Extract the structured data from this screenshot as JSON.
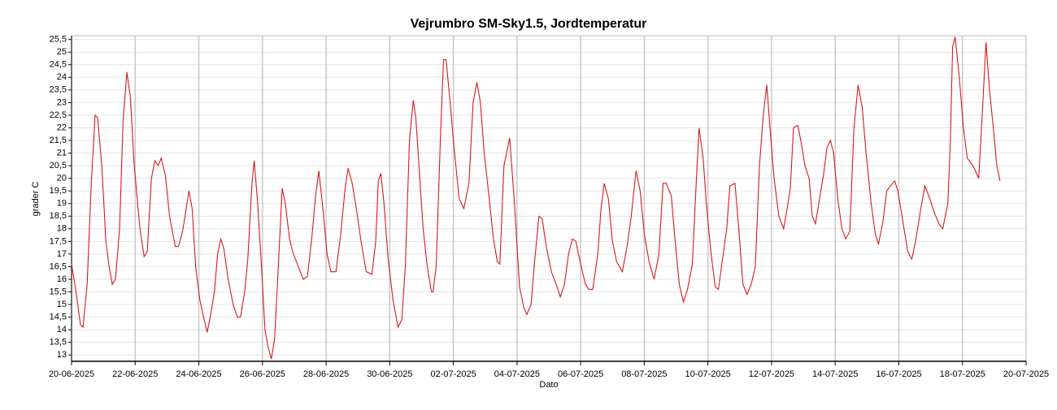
{
  "chart_data": {
    "type": "line",
    "title": "Vejrumbro SM-Sky1.5, Jordtemperatur",
    "xlabel": "Dato",
    "ylabel": "grader C",
    "color": "#d7191c",
    "grid": true,
    "xlim": [
      0,
      30
    ],
    "ylim": [
      12.75,
      25.65
    ],
    "xticks": [
      {
        "value": 0,
        "label": "20-06-2025"
      },
      {
        "value": 2,
        "label": "22-06-2025"
      },
      {
        "value": 4,
        "label": "24-06-2025"
      },
      {
        "value": 6,
        "label": "26-06-2025"
      },
      {
        "value": 8,
        "label": "28-06-2025"
      },
      {
        "value": 10,
        "label": "30-06-2025"
      },
      {
        "value": 12,
        "label": "02-07-2025"
      },
      {
        "value": 14,
        "label": "04-07-2025"
      },
      {
        "value": 16,
        "label": "06-07-2025"
      },
      {
        "value": 18,
        "label": "08-07-2025"
      },
      {
        "value": 20,
        "label": "10-07-2025"
      },
      {
        "value": 22,
        "label": "12-07-2025"
      },
      {
        "value": 24,
        "label": "14-07-2025"
      },
      {
        "value": 26,
        "label": "16-07-2025"
      },
      {
        "value": 28,
        "label": "18-07-2025"
      },
      {
        "value": 30,
        "label": "20-07-2025"
      }
    ],
    "yticks": [
      13,
      {
        "value": 13.5,
        "label": "13,5"
      },
      14,
      {
        "value": 14.5,
        "label": "14,5"
      },
      15,
      {
        "value": 15.5,
        "label": "15,5"
      },
      16,
      {
        "value": 16.5,
        "label": "16,5"
      },
      17,
      {
        "value": 17.5,
        "label": "17,5"
      },
      18,
      {
        "value": 18.5,
        "label": "18,5"
      },
      19,
      {
        "value": 19.5,
        "label": "19,5"
      },
      20,
      {
        "value": 20.5,
        "label": "20,5"
      },
      21,
      {
        "value": 21.5,
        "label": "21,5"
      },
      22,
      {
        "value": 22.5,
        "label": "22,5"
      },
      23,
      {
        "value": 23.5,
        "label": "23,5"
      },
      24,
      {
        "value": 24.5,
        "label": "24,5"
      },
      25,
      {
        "value": 25.5,
        "label": "25,5"
      }
    ],
    "x": [
      0,
      0.13,
      0.28,
      0.36,
      0.49,
      0.62,
      0.74,
      0.82,
      0.95,
      1.08,
      1.18,
      1.28,
      1.38,
      1.51,
      1.62,
      1.74,
      1.85,
      1.97,
      2.15,
      2.28,
      2.38,
      2.51,
      2.62,
      2.72,
      2.82,
      2.95,
      3.08,
      3.26,
      3.36,
      3.49,
      3.59,
      3.69,
      3.79,
      3.9,
      4.03,
      4.15,
      4.26,
      4.36,
      4.49,
      4.59,
      4.69,
      4.79,
      4.92,
      5.08,
      5.21,
      5.31,
      5.44,
      5.54,
      5.67,
      5.74,
      5.85,
      5.97,
      6.08,
      6.18,
      6.28,
      6.38,
      6.49,
      6.62,
      6.72,
      6.85,
      6.97,
      7.13,
      7.28,
      7.41,
      7.54,
      7.67,
      7.77,
      7.9,
      8.03,
      8.15,
      8.31,
      8.46,
      8.59,
      8.69,
      8.82,
      8.95,
      9.1,
      9.26,
      9.44,
      9.56,
      9.64,
      9.72,
      9.82,
      9.95,
      10.1,
      10.26,
      10.38,
      10.49,
      10.62,
      10.74,
      10.82,
      10.92,
      11.05,
      11.18,
      11.31,
      11.36,
      11.46,
      11.59,
      11.69,
      11.77,
      11.9,
      12,
      12.18,
      12.33,
      12.49,
      12.62,
      12.74,
      12.85,
      12.97,
      13.1,
      13.26,
      13.38,
      13.46,
      13.59,
      13.77,
      13.92,
      14.08,
      14.21,
      14.31,
      14.44,
      14.56,
      14.69,
      14.79,
      14.92,
      15.08,
      15.23,
      15.36,
      15.49,
      15.62,
      15.74,
      15.85,
      16,
      16.15,
      16.26,
      16.38,
      16.54,
      16.64,
      16.74,
      16.87,
      17,
      17.13,
      17.31,
      17.46,
      17.59,
      17.74,
      17.87,
      18,
      18.15,
      18.31,
      18.46,
      18.59,
      18.69,
      18.85,
      18.97,
      19.1,
      19.23,
      19.36,
      19.51,
      19.62,
      19.72,
      19.85,
      19.95,
      20.1,
      20.23,
      20.33,
      20.46,
      20.59,
      20.69,
      20.85,
      20.97,
      21.1,
      21.23,
      21.36,
      21.49,
      21.62,
      21.74,
      21.85,
      21.95,
      22.08,
      22.23,
      22.38,
      22.49,
      22.59,
      22.69,
      22.82,
      22.92,
      23.05,
      23.18,
      23.28,
      23.38,
      23.51,
      23.64,
      23.74,
      23.85,
      23.95,
      24.08,
      24.21,
      24.33,
      24.46,
      24.59,
      24.72,
      24.85,
      24.97,
      25.13,
      25.26,
      25.36,
      25.49,
      25.62,
      25.74,
      25.87,
      25.97,
      26.1,
      26.28,
      26.41,
      26.54,
      26.69,
      26.82,
      26.97,
      27.13,
      27.26,
      27.38,
      27.54,
      27.62,
      27.69,
      27.77,
      27.9,
      28.03,
      28.15,
      28.33,
      28.51,
      28.62,
      28.74,
      28.85,
      28.97,
      29.08,
      29.18
    ],
    "values": [
      16.6,
      15.6,
      14.2,
      14.1,
      15.8,
      19.8,
      22.5,
      22.4,
      20.5,
      17.5,
      16.5,
      15.8,
      16,
      18,
      22.3,
      24.2,
      23.2,
      20.5,
      18,
      16.9,
      17.1,
      20,
      20.7,
      20.5,
      20.8,
      20.1,
      18.5,
      17.3,
      17.3,
      17.9,
      18.7,
      19.5,
      18.8,
      16.5,
      15.2,
      14.5,
      13.9,
      14.5,
      15.5,
      17,
      17.6,
      17.2,
      16,
      15,
      14.5,
      14.5,
      15.5,
      16.8,
      19.8,
      20.7,
      19,
      16.5,
      14,
      13.3,
      12.85,
      13.6,
      16.3,
      19.6,
      19,
      17.6,
      17,
      16.5,
      16,
      16.1,
      17.5,
      19.3,
      20.3,
      18.8,
      17,
      16.3,
      16.3,
      17.8,
      19.5,
      20.4,
      19.8,
      18.8,
      17.5,
      16.3,
      16.2,
      17.5,
      19.9,
      20.2,
      19,
      16.8,
      15.2,
      14.1,
      14.4,
      16.5,
      21.5,
      23.1,
      22.4,
      20.5,
      18,
      16.5,
      15.5,
      15.5,
      16.5,
      21.5,
      24.7,
      24.7,
      23,
      21.5,
      19.2,
      18.8,
      19.8,
      23,
      23.8,
      23,
      21,
      19.5,
      17.6,
      16.7,
      16.6,
      20.5,
      21.6,
      19,
      15.7,
      14.9,
      14.6,
      15,
      16.8,
      18.5,
      18.4,
      17.3,
      16.3,
      15.8,
      15.3,
      15.8,
      17,
      17.6,
      17.5,
      16.6,
      15.8,
      15.6,
      15.6,
      17,
      18.8,
      19.8,
      19.2,
      17.5,
      16.7,
      16.3,
      17.3,
      18.5,
      20.3,
      19.5,
      17.8,
      16.7,
      16,
      17,
      19.8,
      19.8,
      19.3,
      17.5,
      15.8,
      15.1,
      15.6,
      16.6,
      19.5,
      22,
      20.8,
      19,
      17,
      15.7,
      15.6,
      16.8,
      18,
      19.7,
      19.8,
      18,
      15.8,
      15.4,
      15.8,
      16.5,
      20.5,
      22.5,
      23.7,
      22,
      20,
      18.5,
      18,
      18.8,
      19.6,
      22,
      22.1,
      21.5,
      20.5,
      20,
      18.5,
      18.2,
      19.2,
      20.2,
      21.2,
      21.5,
      21,
      19.2,
      18,
      17.6,
      17.9,
      22,
      23.7,
      22.8,
      21,
      19,
      17.8,
      17.4,
      18.2,
      19.5,
      19.7,
      19.9,
      19.5,
      18.5,
      17.1,
      16.8,
      17.6,
      18.8,
      19.7,
      19.2,
      18.6,
      18.2,
      18,
      19,
      21.5,
      25.2,
      25.6,
      24,
      22,
      20.8,
      20.5,
      20,
      22.5,
      25.4,
      23.5,
      22,
      20.5,
      19.9
    ]
  }
}
